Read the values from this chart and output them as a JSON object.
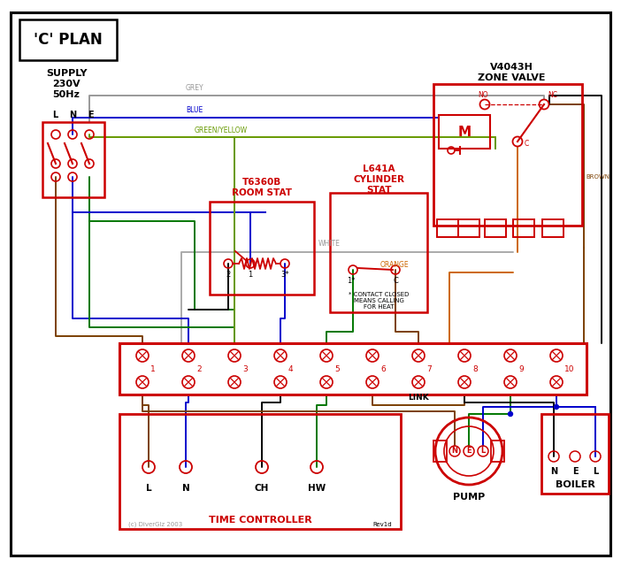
{
  "bg": "#ffffff",
  "black": "#000000",
  "red": "#cc0000",
  "grey": "#999999",
  "blue": "#0000cc",
  "green": "#007700",
  "brown": "#7B3F00",
  "orange": "#cc6600",
  "white_w": "#aaaaaa",
  "gy": "#669900",
  "title": "'C' PLAN",
  "zone_valve": "V4043H\nZONE VALVE",
  "room_stat": "T6360B\nROOM STAT",
  "cyl_stat": "L641A\nCYLINDER\nSTAT",
  "tc_title": "TIME CONTROLLER",
  "pump_title": "PUMP",
  "boiler_title": "BOILER",
  "supply": "SUPPLY\n230V\n50Hz",
  "note": "* CONTACT CLOSED\nMEANS CALLING\nFOR HEAT",
  "copyright": "(c) DiverGlz 2003",
  "rev": "Rev1d"
}
